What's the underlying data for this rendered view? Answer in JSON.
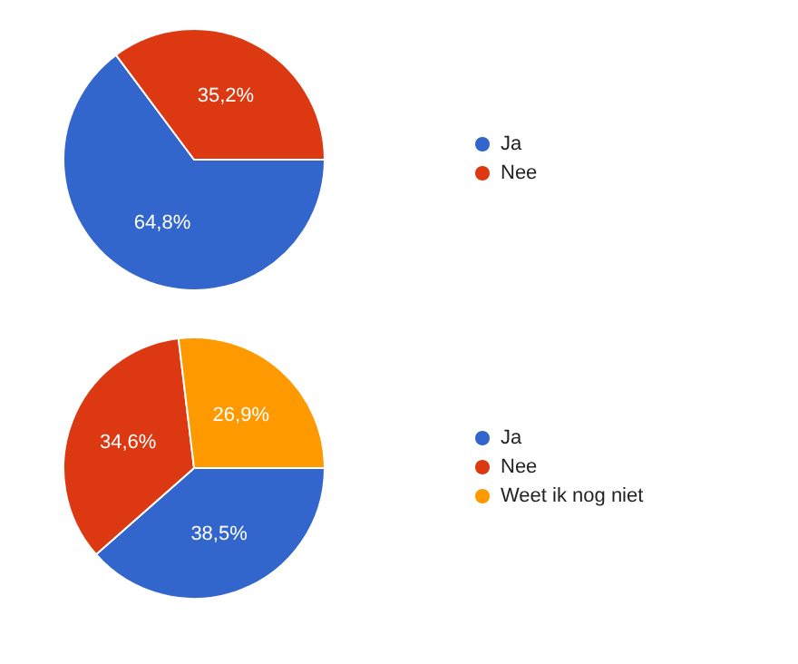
{
  "chart_data": [
    {
      "type": "pie",
      "categories": [
        "Ja",
        "Nee"
      ],
      "values": [
        64.8,
        35.2
      ],
      "colors": [
        "#3366cc",
        "#dc3912"
      ],
      "value_labels": [
        "64,8%",
        "35,2%"
      ],
      "legend": "right"
    },
    {
      "type": "pie",
      "categories": [
        "Ja",
        "Nee",
        "Weet ik nog niet"
      ],
      "values": [
        38.5,
        34.6,
        26.9
      ],
      "colors": [
        "#3366cc",
        "#dc3912",
        "#ff9900"
      ],
      "value_labels": [
        "38,5%",
        "34,6%",
        "26,9%"
      ],
      "legend": "right"
    }
  ]
}
